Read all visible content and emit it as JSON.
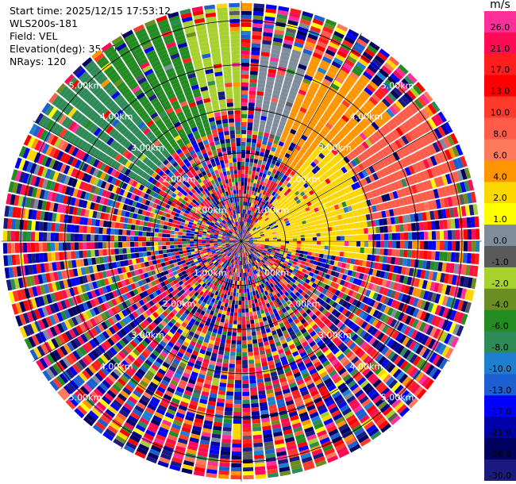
{
  "header": {
    "start_time": "Start time: 2025/12/15 17:53:12",
    "station": "WLS200s-181",
    "field": "Field: VEL",
    "elevation": "Elevation(deg): 35.00",
    "nrays": "NRays: 120"
  },
  "chart_data": {
    "type": "ppi",
    "instrument": "WLS200s-181",
    "field": "VEL",
    "elevation_deg": 35.0,
    "n_rays": 120,
    "range_rings_km": [
      1.0,
      2.0,
      3.0,
      4.0,
      5.0
    ],
    "range_ring_labels": [
      "1.00km",
      "2.00km",
      "3.00km",
      "4.00km",
      "5.00km"
    ],
    "max_range_km": 5.45,
    "colorbar": {
      "unit": "m/s",
      "ticks": [
        "26.0",
        "21.0",
        "17.0",
        "13.0",
        "10.0",
        "8.0",
        "6.0",
        "4.0",
        "2.0",
        "1.0",
        "0.0",
        "-1.0",
        "-2.0",
        "-4.0",
        "-6.0",
        "-8.0",
        "-10.0",
        "-13.0",
        "-17.0",
        "-21.0",
        "-26.0",
        "-30.0"
      ],
      "colors": [
        "#ff2e9a",
        "#ff0a55",
        "#ff1e1e",
        "#ff0000",
        "#ff3a2a",
        "#ff5c4a",
        "#ff7a5a",
        "#ff9500",
        "#ffd700",
        "#ffff00",
        "#7f8c9a",
        "#5a5a5a",
        "#a7d12e",
        "#6b8e23",
        "#228b22",
        "#2e8b57",
        "#1e7fd0",
        "#1b5fd0",
        "#0000ff",
        "#0000aa",
        "#000060",
        "#1a1a80"
      ]
    },
    "coherent_regions": [
      {
        "description_az_from_north_deg": [
          300,
          345
        ],
        "range_km": [
          2.5,
          5.3
        ],
        "value_ms": -8.0
      },
      {
        "description_az_from_north_deg": [
          320,
          345
        ],
        "range_km": [
          2.5,
          5.3
        ],
        "value_ms": -6.0
      },
      {
        "description_az_from_north_deg": [
          345,
          360
        ],
        "range_km": [
          3.0,
          5.3
        ],
        "value_ms": -2.0
      },
      {
        "description_az_from_north_deg": [
          5,
          25
        ],
        "range_km": [
          2.5,
          4.5
        ],
        "value_ms": 0.0
      },
      {
        "description_az_from_north_deg": [
          20,
          55
        ],
        "range_km": [
          2.0,
          4.5
        ],
        "value_ms": 4.0
      },
      {
        "description_az_from_north_deg": [
          50,
          80
        ],
        "range_km": [
          3.0,
          5.0
        ],
        "value_ms": 8.0
      },
      {
        "description_az_from_north_deg": [
          40,
          100
        ],
        "range_km": [
          0.3,
          3.0
        ],
        "value_ms": 2.0
      }
    ],
    "background": "noisy velocity field (random values across full colorbar)"
  }
}
